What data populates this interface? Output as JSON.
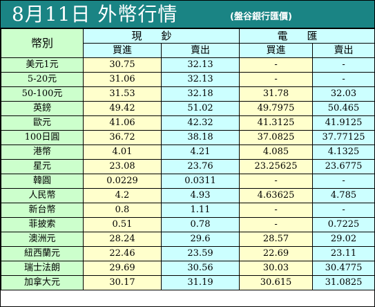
{
  "header": {
    "title": "8月11日 外幣行情",
    "subtitle": "(盤谷銀行匯價)"
  },
  "columns": {
    "currency_label": "幣別",
    "cash_label": "現鈔",
    "transfer_label": "電匯",
    "buy_label": "買進",
    "sell_label": "賣出"
  },
  "rows": [
    {
      "name": "美元1元",
      "cash_buy": "30.75",
      "cash_sell": "32.13",
      "tt_buy": "-",
      "tt_sell": "-"
    },
    {
      "name": "5-20元",
      "cash_buy": "31.06",
      "cash_sell": "32.13",
      "tt_buy": "-",
      "tt_sell": "-"
    },
    {
      "name": "50-100元",
      "cash_buy": "31.53",
      "cash_sell": "32.18",
      "tt_buy": "31.78",
      "tt_sell": "32.03"
    },
    {
      "name": "英鎊",
      "cash_buy": "49.42",
      "cash_sell": "51.02",
      "tt_buy": "49.7975",
      "tt_sell": "50.465"
    },
    {
      "name": "歐元",
      "cash_buy": "41.06",
      "cash_sell": "42.32",
      "tt_buy": "41.3125",
      "tt_sell": "41.9125"
    },
    {
      "name": "100日圓",
      "cash_buy": "36.72",
      "cash_sell": "38.18",
      "tt_buy": "37.0825",
      "tt_sell": "37.77125"
    },
    {
      "name": "港幣",
      "cash_buy": "4.01",
      "cash_sell": "4.21",
      "tt_buy": "4.085",
      "tt_sell": "4.1325"
    },
    {
      "name": "星元",
      "cash_buy": "23.08",
      "cash_sell": "23.76",
      "tt_buy": "23.25625",
      "tt_sell": "23.6775"
    },
    {
      "name": "韓圓",
      "cash_buy": "0.0229",
      "cash_sell": "0.0311",
      "tt_buy": "-",
      "tt_sell": "-"
    },
    {
      "name": "人民幣",
      "cash_buy": "4.2",
      "cash_sell": "4.93",
      "tt_buy": "4.63625",
      "tt_sell": "4.785"
    },
    {
      "name": "新台幣",
      "cash_buy": "0.8",
      "cash_sell": "1.11",
      "tt_buy": "-",
      "tt_sell": "-"
    },
    {
      "name": "菲披索",
      "cash_buy": "0.51",
      "cash_sell": "0.78",
      "tt_buy": "-",
      "tt_sell": "0.7225"
    },
    {
      "name": "澳洲元",
      "cash_buy": "28.24",
      "cash_sell": "29.6",
      "tt_buy": "28.57",
      "tt_sell": "29.02"
    },
    {
      "name": "紐西蘭元",
      "cash_buy": "22.46",
      "cash_sell": "23.59",
      "tt_buy": "22.69",
      "tt_sell": "23.11"
    },
    {
      "name": "瑞士法朗",
      "cash_buy": "29.69",
      "cash_sell": "30.56",
      "tt_buy": "30.03",
      "tt_sell": "30.4775"
    },
    {
      "name": "加拿大元",
      "cash_buy": "30.17",
      "cash_sell": "31.19",
      "tt_buy": "30.615",
      "tt_sell": "31.0825"
    }
  ],
  "colors": {
    "header_bg": "#1a8484",
    "label_bg": "#ccffcc",
    "yellow_bg": "#ffffcc",
    "cyan_bg": "#ccffff"
  }
}
